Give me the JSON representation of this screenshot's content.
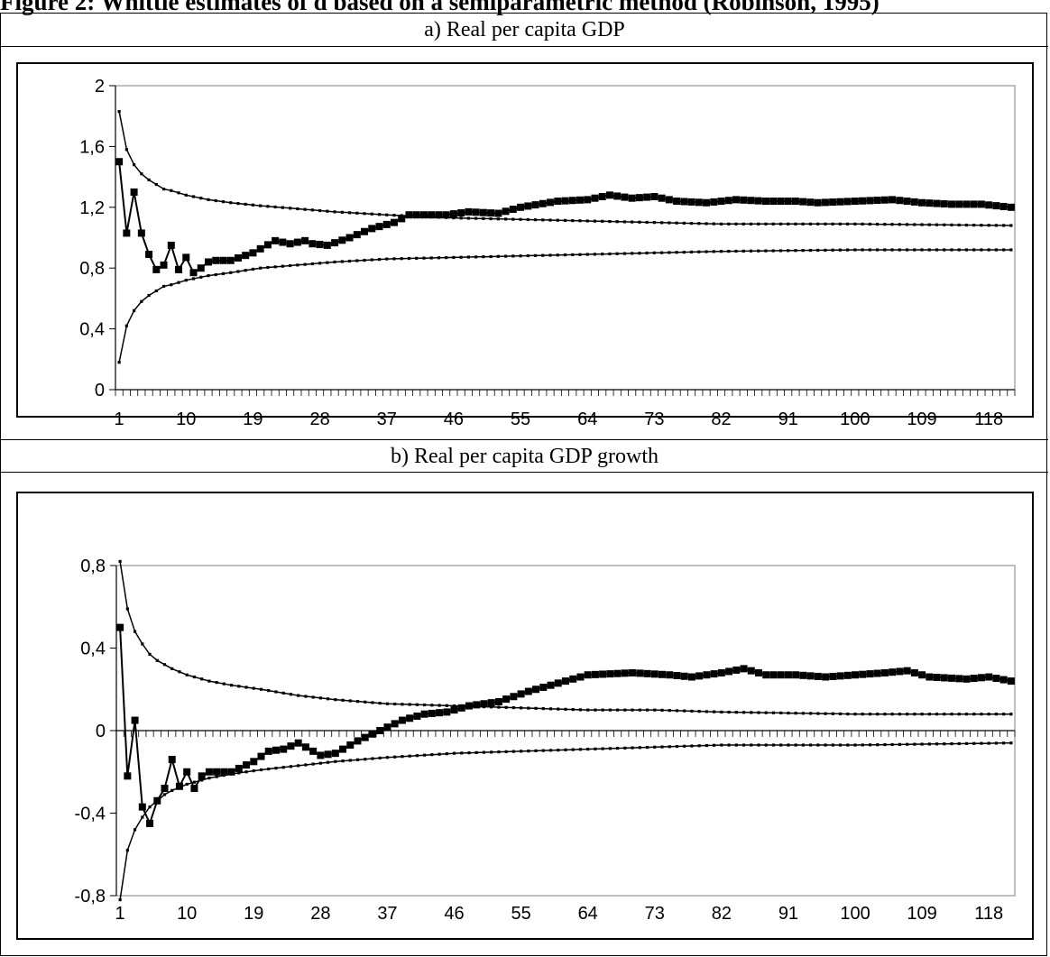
{
  "page": {
    "title": "Figure 2: Whittle estimates of d based on a semiparametric method (Robinson, 1995)"
  },
  "panels": [
    {
      "label": "a) Real per capita GDP"
    },
    {
      "label": "b) Real per capita GDP growth"
    }
  ],
  "colors": {
    "line": "#000000",
    "axis": "#000000",
    "plot_border": "#808080",
    "background": "#ffffff"
  },
  "chart_data": [
    {
      "type": "line",
      "title": "a) Real per capita GDP",
      "x_range": [
        1,
        121
      ],
      "ylim": [
        0,
        2
      ],
      "y_ticks": [
        "0",
        "0,4",
        "0,8",
        "1,2",
        "1,6",
        "2"
      ],
      "y_tick_values": [
        0,
        0.4,
        0.8,
        1.2,
        1.6,
        2.0
      ],
      "x_ticks": [
        1,
        10,
        19,
        28,
        37,
        46,
        55,
        64,
        73,
        82,
        91,
        100,
        109,
        118
      ],
      "grid": false,
      "series": [
        {
          "marker": "square",
          "keyframes": [
            [
              1,
              1.5
            ],
            [
              2,
              1.03
            ],
            [
              3,
              1.3
            ],
            [
              4,
              1.03
            ],
            [
              5,
              0.89
            ],
            [
              6,
              0.79
            ],
            [
              7,
              0.82
            ],
            [
              8,
              0.95
            ],
            [
              9,
              0.79
            ],
            [
              10,
              0.87
            ],
            [
              11,
              0.77
            ],
            [
              12,
              0.8
            ],
            [
              13,
              0.84
            ],
            [
              14,
              0.85
            ],
            [
              16,
              0.85
            ],
            [
              19,
              0.9
            ],
            [
              22,
              0.98
            ],
            [
              24,
              0.96
            ],
            [
              26,
              0.98
            ],
            [
              27,
              0.96
            ],
            [
              29,
              0.95
            ],
            [
              32,
              1.0
            ],
            [
              35,
              1.06
            ],
            [
              38,
              1.1
            ],
            [
              40,
              1.15
            ],
            [
              45,
              1.15
            ],
            [
              48,
              1.17
            ],
            [
              52,
              1.16
            ],
            [
              55,
              1.2
            ],
            [
              60,
              1.24
            ],
            [
              64,
              1.25
            ],
            [
              67,
              1.28
            ],
            [
              70,
              1.26
            ],
            [
              73,
              1.27
            ],
            [
              76,
              1.24
            ],
            [
              80,
              1.23
            ],
            [
              84,
              1.25
            ],
            [
              88,
              1.24
            ],
            [
              92,
              1.24
            ],
            [
              95,
              1.23
            ],
            [
              100,
              1.24
            ],
            [
              105,
              1.25
            ],
            [
              109,
              1.23
            ],
            [
              113,
              1.22
            ],
            [
              117,
              1.22
            ],
            [
              121,
              1.2
            ]
          ]
        },
        {
          "marker": "dot",
          "keyframes": [
            [
              1,
              1.83
            ],
            [
              2,
              1.58
            ],
            [
              3,
              1.48
            ],
            [
              4,
              1.42
            ],
            [
              5,
              1.38
            ],
            [
              6,
              1.35
            ],
            [
              7,
              1.32
            ],
            [
              8,
              1.31
            ],
            [
              10,
              1.28
            ],
            [
              13,
              1.25
            ],
            [
              16,
              1.23
            ],
            [
              20,
              1.21
            ],
            [
              25,
              1.19
            ],
            [
              30,
              1.17
            ],
            [
              37,
              1.15
            ],
            [
              46,
              1.13
            ],
            [
              55,
              1.12
            ],
            [
              64,
              1.11
            ],
            [
              73,
              1.1
            ],
            [
              82,
              1.09
            ],
            [
              100,
              1.09
            ],
            [
              121,
              1.08
            ]
          ]
        },
        {
          "marker": "dot",
          "keyframes": [
            [
              1,
              0.18
            ],
            [
              2,
              0.42
            ],
            [
              3,
              0.52
            ],
            [
              4,
              0.58
            ],
            [
              5,
              0.62
            ],
            [
              6,
              0.65
            ],
            [
              7,
              0.68
            ],
            [
              8,
              0.69
            ],
            [
              10,
              0.72
            ],
            [
              13,
              0.75
            ],
            [
              16,
              0.77
            ],
            [
              20,
              0.8
            ],
            [
              25,
              0.82
            ],
            [
              30,
              0.84
            ],
            [
              37,
              0.86
            ],
            [
              46,
              0.87
            ],
            [
              55,
              0.88
            ],
            [
              64,
              0.89
            ],
            [
              73,
              0.9
            ],
            [
              82,
              0.91
            ],
            [
              100,
              0.92
            ],
            [
              121,
              0.92
            ]
          ]
        }
      ]
    },
    {
      "type": "line",
      "title": "b) Real per capita GDP growth",
      "x_range": [
        1,
        121
      ],
      "ylim": [
        -0.8,
        0.8
      ],
      "y_ticks": [
        "-0,8",
        "-0,4",
        "0",
        "0,4",
        "0,8"
      ],
      "y_tick_values": [
        -0.8,
        -0.4,
        0,
        0.4,
        0.8
      ],
      "x_ticks": [
        1,
        10,
        19,
        28,
        37,
        46,
        55,
        64,
        73,
        82,
        91,
        100,
        109,
        118
      ],
      "grid": false,
      "series": [
        {
          "marker": "square",
          "keyframes": [
            [
              1,
              0.5
            ],
            [
              2,
              -0.22
            ],
            [
              3,
              0.05
            ],
            [
              4,
              -0.37
            ],
            [
              5,
              -0.45
            ],
            [
              6,
              -0.34
            ],
            [
              7,
              -0.28
            ],
            [
              8,
              -0.14
            ],
            [
              9,
              -0.27
            ],
            [
              10,
              -0.2
            ],
            [
              11,
              -0.28
            ],
            [
              12,
              -0.22
            ],
            [
              13,
              -0.2
            ],
            [
              16,
              -0.2
            ],
            [
              19,
              -0.15
            ],
            [
              21,
              -0.1
            ],
            [
              23,
              -0.09
            ],
            [
              25,
              -0.06
            ],
            [
              26,
              -0.08
            ],
            [
              28,
              -0.12
            ],
            [
              30,
              -0.11
            ],
            [
              33,
              -0.05
            ],
            [
              36,
              0.0
            ],
            [
              39,
              0.05
            ],
            [
              42,
              0.08
            ],
            [
              45,
              0.09
            ],
            [
              48,
              0.12
            ],
            [
              52,
              0.14
            ],
            [
              56,
              0.19
            ],
            [
              60,
              0.23
            ],
            [
              64,
              0.27
            ],
            [
              70,
              0.28
            ],
            [
              75,
              0.27
            ],
            [
              78,
              0.26
            ],
            [
              82,
              0.28
            ],
            [
              85,
              0.3
            ],
            [
              88,
              0.27
            ],
            [
              92,
              0.27
            ],
            [
              96,
              0.26
            ],
            [
              100,
              0.27
            ],
            [
              104,
              0.28
            ],
            [
              107,
              0.29
            ],
            [
              110,
              0.26
            ],
            [
              115,
              0.25
            ],
            [
              118,
              0.26
            ],
            [
              121,
              0.24
            ]
          ]
        },
        {
          "marker": "dot",
          "keyframes": [
            [
              1,
              0.82
            ],
            [
              2,
              0.59
            ],
            [
              3,
              0.48
            ],
            [
              4,
              0.42
            ],
            [
              5,
              0.37
            ],
            [
              6,
              0.34
            ],
            [
              7,
              0.32
            ],
            [
              8,
              0.3
            ],
            [
              10,
              0.27
            ],
            [
              13,
              0.24
            ],
            [
              16,
              0.22
            ],
            [
              20,
              0.2
            ],
            [
              25,
              0.17
            ],
            [
              30,
              0.15
            ],
            [
              37,
              0.13
            ],
            [
              46,
              0.12
            ],
            [
              55,
              0.11
            ],
            [
              64,
              0.1
            ],
            [
              73,
              0.1
            ],
            [
              82,
              0.09
            ],
            [
              100,
              0.08
            ],
            [
              121,
              0.08
            ]
          ]
        },
        {
          "marker": "dot",
          "keyframes": [
            [
              1,
              -0.82
            ],
            [
              2,
              -0.58
            ],
            [
              3,
              -0.48
            ],
            [
              4,
              -0.42
            ],
            [
              5,
              -0.37
            ],
            [
              6,
              -0.34
            ],
            [
              7,
              -0.31
            ],
            [
              8,
              -0.29
            ],
            [
              10,
              -0.26
            ],
            [
              13,
              -0.23
            ],
            [
              16,
              -0.21
            ],
            [
              20,
              -0.19
            ],
            [
              25,
              -0.17
            ],
            [
              30,
              -0.15
            ],
            [
              37,
              -0.13
            ],
            [
              46,
              -0.11
            ],
            [
              55,
              -0.1
            ],
            [
              64,
              -0.09
            ],
            [
              73,
              -0.08
            ],
            [
              82,
              -0.07
            ],
            [
              100,
              -0.07
            ],
            [
              121,
              -0.06
            ]
          ]
        }
      ]
    }
  ]
}
